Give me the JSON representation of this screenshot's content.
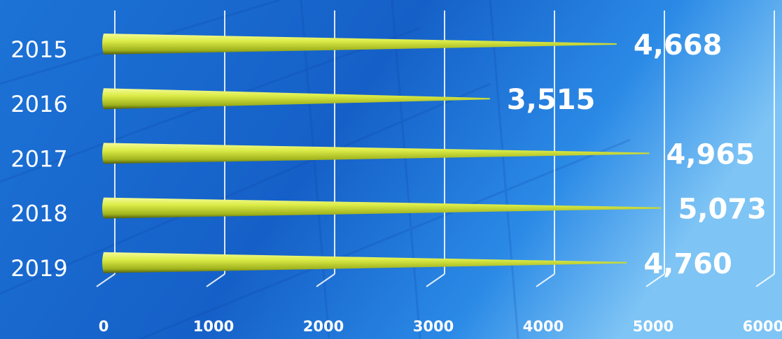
{
  "chart_data": {
    "type": "bar",
    "orientation": "horizontal",
    "categories": [
      "2015",
      "2016",
      "2017",
      "2018",
      "2019"
    ],
    "values": [
      4668,
      3515,
      4965,
      5073,
      4760
    ],
    "value_labels": [
      "4,668",
      "3,515",
      "4,965",
      "5,073",
      "4,760"
    ],
    "color": "#d9ea45",
    "xlim": [
      0,
      6000
    ],
    "xticks": [
      0,
      1000,
      2000,
      3000,
      4000,
      5000,
      6000
    ],
    "grid": true
  }
}
